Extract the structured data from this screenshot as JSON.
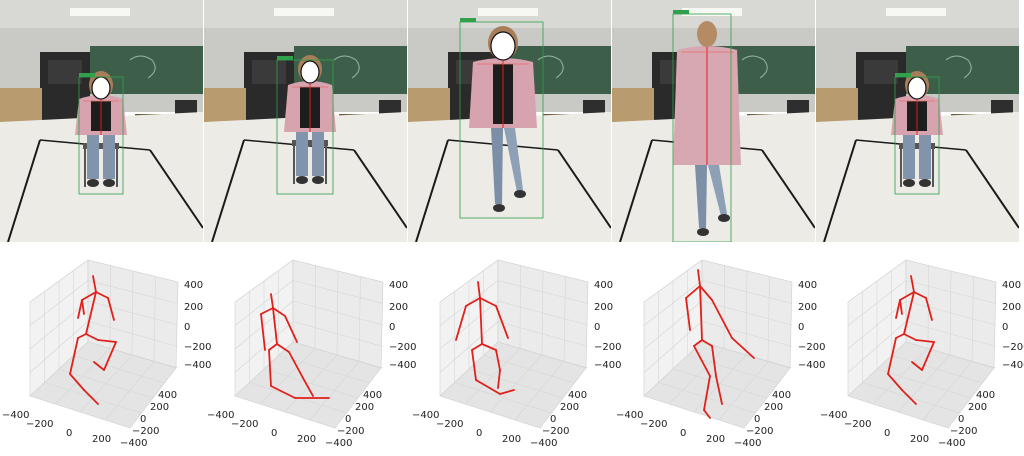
{
  "frames": [
    {
      "pose": "seated"
    },
    {
      "pose": "standing-up"
    },
    {
      "pose": "walking-toward"
    },
    {
      "pose": "walking-away"
    },
    {
      "pose": "seated"
    }
  ],
  "plots": [
    {
      "pose": "seated"
    },
    {
      "pose": "standing-up"
    },
    {
      "pose": "walking-toward"
    },
    {
      "pose": "walking-away"
    },
    {
      "pose": "seated"
    }
  ],
  "axes": {
    "z_ticks": [
      "400",
      "200",
      "0",
      "−200",
      "−400"
    ],
    "x_ticks": [
      "−400",
      "−200",
      "0",
      "200",
      "400"
    ],
    "y_ticks": [
      "400",
      "200",
      "0",
      "−200",
      "−400"
    ],
    "skeleton_color": "#e0201a"
  }
}
